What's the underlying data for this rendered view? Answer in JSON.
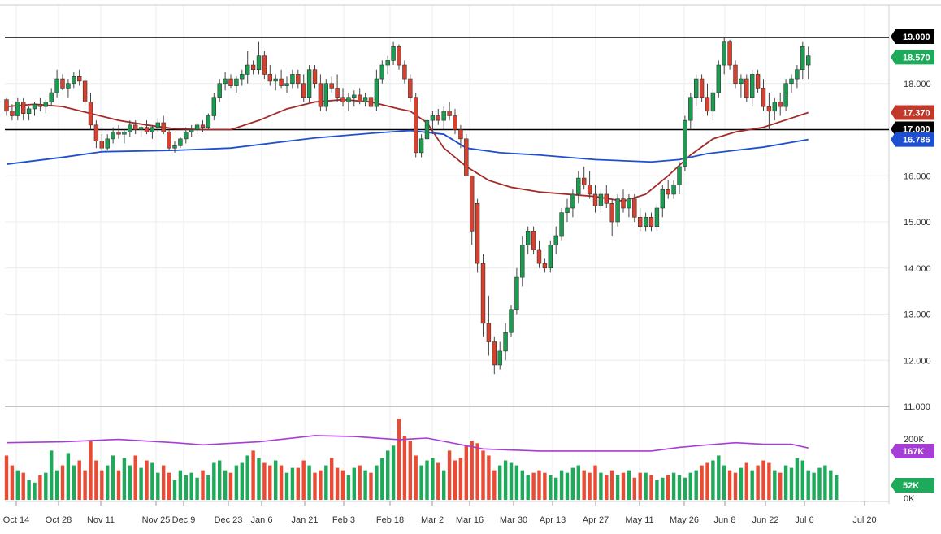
{
  "chart_data": {
    "type": "candlestick",
    "price_axis": {
      "ticks": [
        "19.000",
        "18.000",
        "17.000",
        "16.000",
        "15.000",
        "14.000",
        "13.000",
        "12.000",
        "11.000"
      ],
      "tick_values": [
        19,
        18,
        17,
        16,
        15,
        14,
        13,
        12,
        11
      ],
      "range": [
        11,
        19.6
      ]
    },
    "date_axis": {
      "labels": [
        "Oct 14",
        "Oct 28",
        "Nov 11",
        "Nov 25",
        "Dec 9",
        "Dec 23",
        "Jan 6",
        "Jan 21",
        "Feb 3",
        "Feb 18",
        "Mar 2",
        "Mar 16",
        "Mar 30",
        "Apr 13",
        "Apr 27",
        "May 11",
        "May 26",
        "Jun 8",
        "Jun 22",
        "Jul 6",
        "Jul 20"
      ]
    },
    "horizontal_lines": [
      {
        "value": 19.0,
        "label": "19.000",
        "color": "#000000"
      },
      {
        "value": 17.0,
        "label": "17.000",
        "color": "#000000"
      }
    ],
    "price_badges": [
      {
        "value": 18.57,
        "label": "18.570",
        "color": "#1eaa5a"
      },
      {
        "value": 17.37,
        "label": "17.370",
        "color": "#c0392b"
      },
      {
        "value": 16.786,
        "label": "16.786",
        "color": "#1f4fd1"
      }
    ],
    "moving_averages": [
      {
        "color": "#a32a2a",
        "points": [
          [
            0,
            17.5
          ],
          [
            5,
            17.55
          ],
          [
            10,
            17.5
          ],
          [
            15,
            17.35
          ],
          [
            20,
            17.2
          ],
          [
            25,
            17.1
          ],
          [
            30,
            17.02
          ],
          [
            35,
            17.0
          ],
          [
            40,
            17.0
          ],
          [
            45,
            17.2
          ],
          [
            50,
            17.45
          ],
          [
            55,
            17.6
          ],
          [
            60,
            17.65
          ],
          [
            65,
            17.6
          ],
          [
            70,
            17.45
          ],
          [
            72,
            17.4
          ],
          [
            75,
            17.15
          ],
          [
            78,
            16.6
          ],
          [
            82,
            16.2
          ],
          [
            86,
            15.9
          ],
          [
            90,
            15.75
          ],
          [
            95,
            15.65
          ],
          [
            100,
            15.6
          ],
          [
            105,
            15.55
          ],
          [
            110,
            15.45
          ],
          [
            114,
            15.6
          ],
          [
            118,
            16.0
          ],
          [
            122,
            16.45
          ],
          [
            126,
            16.8
          ],
          [
            130,
            16.95
          ],
          [
            135,
            17.05
          ],
          [
            140,
            17.25
          ],
          [
            143,
            17.37
          ]
        ]
      },
      {
        "color": "#1f4fd1",
        "points": [
          [
            0,
            16.25
          ],
          [
            10,
            16.4
          ],
          [
            17,
            16.52
          ],
          [
            30,
            16.55
          ],
          [
            40,
            16.6
          ],
          [
            55,
            16.82
          ],
          [
            65,
            16.92
          ],
          [
            72,
            16.98
          ],
          [
            78,
            16.9
          ],
          [
            82,
            16.6
          ],
          [
            88,
            16.5
          ],
          [
            95,
            16.45
          ],
          [
            105,
            16.35
          ],
          [
            115,
            16.3
          ],
          [
            120,
            16.35
          ],
          [
            125,
            16.48
          ],
          [
            130,
            16.55
          ],
          [
            135,
            16.62
          ],
          [
            143,
            16.786
          ]
        ]
      }
    ],
    "volume": {
      "ticks": [
        "200K",
        "0K"
      ],
      "badges": [
        {
          "value": 167,
          "label": "167K",
          "color": "#a63dd6"
        },
        {
          "value": 52,
          "label": "52K",
          "color": "#1eaa5a"
        }
      ],
      "avg_line": [
        [
          0,
          185
        ],
        [
          10,
          188
        ],
        [
          20,
          196
        ],
        [
          30,
          185
        ],
        [
          35,
          178
        ],
        [
          45,
          188
        ],
        [
          55,
          208
        ],
        [
          62,
          205
        ],
        [
          70,
          195
        ],
        [
          75,
          200
        ],
        [
          85,
          165
        ],
        [
          95,
          158
        ],
        [
          110,
          158
        ],
        [
          115,
          158
        ],
        [
          120,
          170
        ],
        [
          125,
          178
        ],
        [
          130,
          185
        ],
        [
          135,
          180
        ],
        [
          140,
          180
        ],
        [
          143,
          168
        ]
      ]
    },
    "candles_ohlc": [
      [
        17.65,
        17.7,
        17.3,
        17.4
      ],
      [
        17.4,
        17.55,
        17.2,
        17.3
      ],
      [
        17.3,
        17.7,
        17.2,
        17.6
      ],
      [
        17.6,
        17.7,
        17.2,
        17.35
      ],
      [
        17.35,
        17.5,
        17.2,
        17.45
      ],
      [
        17.45,
        17.6,
        17.3,
        17.55
      ],
      [
        17.55,
        17.7,
        17.4,
        17.5
      ],
      [
        17.5,
        17.65,
        17.35,
        17.6
      ],
      [
        17.6,
        17.9,
        17.5,
        17.8
      ],
      [
        17.8,
        18.3,
        17.7,
        18.1
      ],
      [
        18.1,
        18.2,
        17.85,
        17.9
      ],
      [
        17.9,
        18.1,
        17.7,
        18.0
      ],
      [
        18.0,
        18.25,
        17.9,
        18.15
      ],
      [
        18.15,
        18.3,
        17.95,
        18.05
      ],
      [
        18.05,
        18.1,
        17.5,
        17.6
      ],
      [
        17.6,
        17.8,
        17.0,
        17.1
      ],
      [
        17.1,
        17.2,
        16.6,
        16.75
      ],
      [
        16.75,
        16.9,
        16.5,
        16.6
      ],
      [
        16.6,
        16.9,
        16.55,
        16.8
      ],
      [
        16.8,
        17.05,
        16.7,
        16.95
      ],
      [
        16.95,
        17.1,
        16.8,
        16.9
      ],
      [
        16.9,
        17.0,
        16.7,
        16.95
      ],
      [
        16.95,
        17.2,
        16.85,
        17.1
      ],
      [
        17.1,
        17.2,
        16.9,
        17.0
      ],
      [
        17.0,
        17.15,
        16.85,
        17.05
      ],
      [
        17.05,
        17.2,
        16.9,
        16.95
      ],
      [
        16.95,
        17.1,
        16.8,
        17.05
      ],
      [
        17.05,
        17.25,
        16.95,
        17.15
      ],
      [
        17.15,
        17.3,
        16.9,
        16.95
      ],
      [
        16.95,
        17.0,
        16.55,
        16.6
      ],
      [
        16.6,
        16.75,
        16.5,
        16.65
      ],
      [
        16.65,
        16.85,
        16.6,
        16.8
      ],
      [
        16.8,
        17.05,
        16.7,
        16.95
      ],
      [
        16.95,
        17.1,
        16.85,
        17.0
      ],
      [
        17.0,
        17.15,
        16.9,
        17.1
      ],
      [
        17.1,
        17.2,
        16.95,
        17.05
      ],
      [
        17.05,
        17.35,
        17.0,
        17.3
      ],
      [
        17.3,
        17.8,
        17.2,
        17.7
      ],
      [
        17.7,
        18.1,
        17.6,
        18.0
      ],
      [
        18.0,
        18.25,
        17.85,
        18.1
      ],
      [
        18.1,
        18.2,
        17.9,
        17.95
      ],
      [
        17.95,
        18.15,
        17.8,
        18.1
      ],
      [
        18.1,
        18.3,
        17.95,
        18.2
      ],
      [
        18.2,
        18.7,
        18.0,
        18.4
      ],
      [
        18.4,
        18.5,
        18.2,
        18.3
      ],
      [
        18.3,
        18.9,
        18.2,
        18.6
      ],
      [
        18.6,
        18.7,
        18.1,
        18.2
      ],
      [
        18.2,
        18.4,
        17.95,
        18.05
      ],
      [
        18.05,
        18.2,
        17.85,
        18.1
      ],
      [
        18.1,
        18.3,
        17.9,
        17.95
      ],
      [
        17.95,
        18.15,
        17.8,
        18.0
      ],
      [
        18.0,
        18.3,
        17.9,
        18.2
      ],
      [
        18.2,
        18.3,
        17.9,
        18.0
      ],
      [
        18.0,
        18.2,
        17.6,
        17.7
      ],
      [
        17.7,
        18.4,
        17.6,
        18.3
      ],
      [
        18.3,
        18.4,
        17.9,
        18.0
      ],
      [
        18.0,
        18.2,
        17.4,
        17.5
      ],
      [
        17.5,
        18.1,
        17.4,
        18.0
      ],
      [
        18.0,
        18.15,
        17.8,
        17.9
      ],
      [
        17.9,
        18.2,
        17.6,
        17.7
      ],
      [
        17.7,
        17.9,
        17.5,
        17.6
      ],
      [
        17.6,
        17.8,
        17.4,
        17.7
      ],
      [
        17.7,
        17.85,
        17.5,
        17.75
      ],
      [
        17.75,
        17.9,
        17.55,
        17.6
      ],
      [
        17.6,
        17.8,
        17.5,
        17.7
      ],
      [
        17.7,
        17.8,
        17.4,
        17.5
      ],
      [
        17.5,
        18.3,
        17.4,
        18.1
      ],
      [
        18.1,
        18.5,
        18.0,
        18.4
      ],
      [
        18.4,
        18.6,
        18.2,
        18.5
      ],
      [
        18.5,
        18.9,
        18.4,
        18.8
      ],
      [
        18.8,
        18.85,
        18.3,
        18.4
      ],
      [
        18.4,
        18.5,
        18.0,
        18.1
      ],
      [
        18.1,
        18.2,
        17.6,
        17.7
      ],
      [
        17.7,
        17.8,
        16.4,
        16.5
      ],
      [
        16.5,
        16.9,
        16.4,
        16.8
      ],
      [
        16.8,
        17.3,
        16.6,
        17.2
      ],
      [
        17.2,
        17.4,
        16.9,
        17.3
      ],
      [
        17.3,
        17.45,
        17.1,
        17.2
      ],
      [
        17.2,
        17.5,
        17.0,
        17.4
      ],
      [
        17.4,
        17.6,
        17.2,
        17.3
      ],
      [
        17.3,
        17.45,
        16.9,
        17.0
      ],
      [
        17.0,
        17.1,
        16.6,
        16.8
      ],
      [
        16.8,
        16.9,
        16.2,
        16.0
      ],
      [
        16.0,
        15.9,
        14.5,
        14.8
      ],
      [
        15.4,
        15.5,
        13.9,
        14.1
      ],
      [
        14.1,
        14.3,
        12.5,
        12.8
      ],
      [
        12.8,
        13.4,
        12.1,
        12.4
      ],
      [
        12.4,
        12.5,
        11.7,
        11.9
      ],
      [
        11.9,
        12.4,
        11.8,
        12.2
      ],
      [
        12.2,
        12.8,
        12.0,
        12.6
      ],
      [
        12.6,
        13.2,
        12.5,
        13.1
      ],
      [
        13.1,
        14.0,
        13.0,
        13.8
      ],
      [
        13.8,
        14.7,
        13.6,
        14.5
      ],
      [
        14.5,
        14.9,
        14.3,
        14.8
      ],
      [
        14.8,
        14.9,
        14.3,
        14.4
      ],
      [
        14.4,
        14.6,
        14.0,
        14.1
      ],
      [
        14.1,
        14.2,
        13.9,
        14.0
      ],
      [
        14.0,
        14.6,
        13.9,
        14.5
      ],
      [
        14.5,
        14.9,
        14.3,
        14.7
      ],
      [
        14.7,
        15.3,
        14.6,
        15.2
      ],
      [
        15.2,
        15.5,
        15.0,
        15.3
      ],
      [
        15.3,
        15.7,
        15.1,
        15.6
      ],
      [
        15.6,
        16.1,
        15.4,
        15.95
      ],
      [
        15.95,
        16.2,
        15.7,
        15.8
      ],
      [
        15.8,
        16.1,
        15.5,
        15.6
      ],
      [
        15.6,
        15.8,
        15.2,
        15.35
      ],
      [
        15.35,
        15.7,
        15.2,
        15.6
      ],
      [
        15.6,
        15.8,
        15.3,
        15.4
      ],
      [
        15.4,
        15.5,
        14.7,
        15.0
      ],
      [
        15.0,
        15.6,
        14.9,
        15.5
      ],
      [
        15.5,
        15.7,
        15.2,
        15.3
      ],
      [
        15.3,
        15.6,
        15.1,
        15.5
      ],
      [
        15.5,
        15.6,
        15.0,
        15.1
      ],
      [
        15.1,
        15.3,
        14.8,
        14.9
      ],
      [
        14.9,
        15.2,
        14.8,
        15.1
      ],
      [
        15.1,
        15.2,
        14.8,
        14.9
      ],
      [
        14.9,
        15.4,
        14.8,
        15.3
      ],
      [
        15.3,
        15.8,
        15.1,
        15.7
      ],
      [
        15.7,
        15.9,
        15.5,
        15.6
      ],
      [
        15.6,
        15.9,
        15.5,
        15.8
      ],
      [
        15.8,
        16.3,
        15.6,
        16.2
      ],
      [
        16.2,
        17.3,
        16.1,
        17.2
      ],
      [
        17.2,
        17.8,
        17.0,
        17.7
      ],
      [
        17.7,
        18.2,
        17.5,
        18.1
      ],
      [
        18.1,
        18.2,
        17.6,
        17.7
      ],
      [
        17.7,
        18.0,
        17.3,
        17.4
      ],
      [
        17.4,
        17.9,
        17.2,
        17.8
      ],
      [
        17.8,
        18.5,
        17.7,
        18.4
      ],
      [
        18.4,
        19.0,
        18.2,
        18.9
      ],
      [
        18.9,
        18.95,
        18.3,
        18.4
      ],
      [
        18.4,
        18.5,
        17.9,
        18.0
      ],
      [
        18.0,
        18.2,
        17.7,
        18.1
      ],
      [
        18.1,
        18.2,
        17.6,
        17.7
      ],
      [
        17.7,
        18.3,
        17.5,
        18.2
      ],
      [
        18.2,
        18.3,
        17.8,
        17.9
      ],
      [
        17.9,
        18.1,
        17.4,
        17.5
      ],
      [
        17.5,
        17.8,
        17.0,
        17.4
      ],
      [
        17.4,
        17.7,
        17.2,
        17.6
      ],
      [
        17.6,
        17.8,
        17.3,
        17.5
      ],
      [
        17.5,
        18.1,
        17.4,
        18.0
      ],
      [
        18.0,
        18.2,
        17.8,
        18.1
      ],
      [
        18.1,
        18.4,
        17.9,
        18.3
      ],
      [
        18.3,
        18.9,
        18.1,
        18.8
      ],
      [
        18.4,
        18.8,
        18.1,
        18.6
      ]
    ],
    "volumes": [
      90,
      70,
      60,
      55,
      40,
      35,
      50,
      55,
      100,
      60,
      70,
      95,
      70,
      80,
      60,
      120,
      80,
      60,
      70,
      90,
      60,
      85,
      70,
      90,
      65,
      80,
      75,
      55,
      70,
      55,
      40,
      60,
      50,
      55,
      45,
      60,
      50,
      75,
      80,
      60,
      55,
      70,
      75,
      90,
      100,
      85,
      75,
      70,
      80,
      70,
      55,
      65,
      65,
      80,
      70,
      55,
      60,
      70,
      85,
      65,
      60,
      50,
      65,
      70,
      60,
      55,
      70,
      85,
      100,
      110,
      165,
      130,
      120,
      90,
      70,
      80,
      85,
      75,
      60,
      100,
      80,
      85,
      110,
      120,
      115,
      100,
      90,
      60,
      70,
      80,
      75,
      70,
      60,
      50,
      55,
      60,
      55,
      50,
      45,
      60,
      55,
      65,
      70,
      60,
      55,
      70,
      55,
      50,
      60,
      50,
      55,
      60,
      45,
      55,
      55,
      50,
      40,
      45,
      50,
      55,
      50,
      45,
      55,
      60,
      70,
      75,
      80,
      90,
      70,
      60,
      55,
      65,
      75,
      60,
      70,
      80,
      75,
      60,
      55,
      70,
      65,
      85,
      80,
      60,
      55,
      65,
      70,
      60,
      50
    ]
  }
}
